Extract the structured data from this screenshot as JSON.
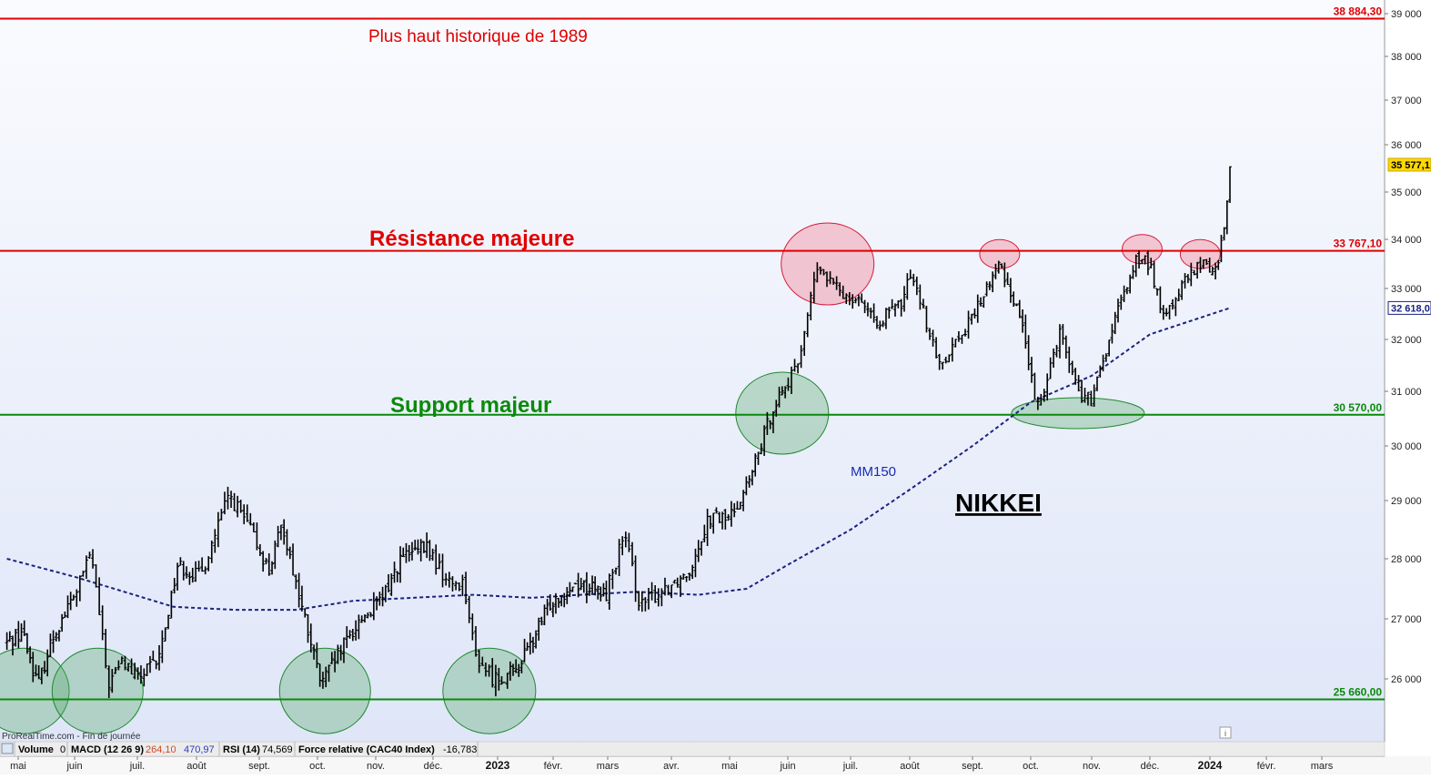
{
  "chart_data": {
    "type": "line",
    "subtype": "ohlc-bars",
    "title": "NIKKEI",
    "ylim": [
      25000,
      39300
    ],
    "y_ticks": [
      {
        "value": 26000,
        "label": "26 000"
      },
      {
        "value": 27000,
        "label": "27 000"
      },
      {
        "value": 28000,
        "label": "28 000"
      },
      {
        "value": 29000,
        "label": "29 000"
      },
      {
        "value": 30000,
        "label": "30 000"
      },
      {
        "value": 31000,
        "label": "31 000"
      },
      {
        "value": 32000,
        "label": "32 000"
      },
      {
        "value": 33000,
        "label": "33 000"
      },
      {
        "value": 34000,
        "label": "34 000"
      },
      {
        "value": 35000,
        "label": "35 000"
      },
      {
        "value": 36000,
        "label": "36 000"
      },
      {
        "value": 37000,
        "label": "37 000"
      },
      {
        "value": 38000,
        "label": "38 000"
      },
      {
        "value": 39000,
        "label": "39 000"
      }
    ],
    "x_ticks": [
      {
        "date": "2022-05-01",
        "label": "mai"
      },
      {
        "date": "2022-06-01",
        "label": "juin"
      },
      {
        "date": "2022-07-01",
        "label": "juil."
      },
      {
        "date": "2022-08-01",
        "label": "août"
      },
      {
        "date": "2022-09-01",
        "label": "sept."
      },
      {
        "date": "2022-10-01",
        "label": "oct."
      },
      {
        "date": "2022-11-01",
        "label": "nov."
      },
      {
        "date": "2022-12-01",
        "label": "déc."
      },
      {
        "date": "2023-01-01",
        "label": "2023",
        "bold": true
      },
      {
        "date": "2023-02-01",
        "label": "févr."
      },
      {
        "date": "2023-03-01",
        "label": "mars"
      },
      {
        "date": "2023-04-01",
        "label": "avr."
      },
      {
        "date": "2023-05-01",
        "label": "mai"
      },
      {
        "date": "2023-06-01",
        "label": "juin"
      },
      {
        "date": "2023-07-01",
        "label": "juil."
      },
      {
        "date": "2023-08-01",
        "label": "août"
      },
      {
        "date": "2023-09-01",
        "label": "sept."
      },
      {
        "date": "2023-10-01",
        "label": "oct."
      },
      {
        "date": "2023-11-01",
        "label": "nov."
      },
      {
        "date": "2023-12-01",
        "label": "déc."
      },
      {
        "date": "2024-01-01",
        "label": "2024",
        "bold": true
      },
      {
        "date": "2024-02-01",
        "label": "févr."
      },
      {
        "date": "2024-03-01",
        "label": "mars"
      }
    ],
    "price_path": [
      {
        "date": "2022-04-25",
        "close": 26600
      },
      {
        "date": "2022-05-03",
        "close": 26800
      },
      {
        "date": "2022-05-12",
        "close": 25900
      },
      {
        "date": "2022-05-20",
        "close": 26700
      },
      {
        "date": "2022-06-01",
        "close": 27400
      },
      {
        "date": "2022-06-09",
        "close": 28100
      },
      {
        "date": "2022-06-17",
        "close": 25900
      },
      {
        "date": "2022-06-24",
        "close": 26300
      },
      {
        "date": "2022-07-01",
        "close": 26000
      },
      {
        "date": "2022-07-12",
        "close": 26300
      },
      {
        "date": "2022-07-22",
        "close": 27900
      },
      {
        "date": "2022-08-03",
        "close": 27700
      },
      {
        "date": "2022-08-17",
        "close": 29100
      },
      {
        "date": "2022-08-26",
        "close": 28600
      },
      {
        "date": "2022-09-06",
        "close": 27800
      },
      {
        "date": "2022-09-13",
        "close": 28600
      },
      {
        "date": "2022-09-22",
        "close": 27300
      },
      {
        "date": "2022-10-03",
        "close": 25900
      },
      {
        "date": "2022-10-12",
        "close": 26400
      },
      {
        "date": "2022-10-24",
        "close": 27000
      },
      {
        "date": "2022-11-04",
        "close": 27300
      },
      {
        "date": "2022-11-14",
        "close": 28000
      },
      {
        "date": "2022-11-28",
        "close": 28200
      },
      {
        "date": "2022-12-08",
        "close": 27600
      },
      {
        "date": "2022-12-16",
        "close": 27600
      },
      {
        "date": "2022-12-21",
        "close": 26400
      },
      {
        "date": "2022-12-30",
        "close": 26000
      },
      {
        "date": "2023-01-10",
        "close": 26100
      },
      {
        "date": "2023-01-20",
        "close": 26600
      },
      {
        "date": "2023-01-31",
        "close": 27300
      },
      {
        "date": "2023-02-13",
        "close": 27600
      },
      {
        "date": "2023-02-28",
        "close": 27400
      },
      {
        "date": "2023-03-09",
        "close": 28400
      },
      {
        "date": "2023-03-17",
        "close": 27200
      },
      {
        "date": "2023-03-28",
        "close": 27500
      },
      {
        "date": "2023-04-10",
        "close": 27800
      },
      {
        "date": "2023-04-20",
        "close": 28700
      },
      {
        "date": "2023-05-01",
        "close": 28700
      },
      {
        "date": "2023-05-12",
        "close": 29400
      },
      {
        "date": "2023-05-25",
        "close": 30800
      },
      {
        "date": "2023-06-05",
        "close": 31400
      },
      {
        "date": "2023-06-15",
        "close": 33400
      },
      {
        "date": "2023-06-27",
        "close": 32900
      },
      {
        "date": "2023-07-07",
        "close": 32800
      },
      {
        "date": "2023-07-13",
        "close": 32300
      },
      {
        "date": "2023-07-28",
        "close": 32700
      },
      {
        "date": "2023-08-02",
        "close": 33400
      },
      {
        "date": "2023-08-15",
        "close": 31500
      },
      {
        "date": "2023-08-30",
        "close": 32300
      },
      {
        "date": "2023-09-15",
        "close": 33500
      },
      {
        "date": "2023-09-27",
        "close": 32300
      },
      {
        "date": "2023-10-04",
        "close": 30600
      },
      {
        "date": "2023-10-16",
        "close": 32200
      },
      {
        "date": "2023-10-25",
        "close": 31000
      },
      {
        "date": "2023-11-01",
        "close": 30800
      },
      {
        "date": "2023-11-14",
        "close": 32500
      },
      {
        "date": "2023-11-24",
        "close": 33600
      },
      {
        "date": "2023-12-01",
        "close": 33500
      },
      {
        "date": "2023-12-08",
        "close": 32400
      },
      {
        "date": "2023-12-20",
        "close": 33200
      },
      {
        "date": "2023-12-28",
        "close": 33500
      },
      {
        "date": "2024-01-05",
        "close": 33400
      },
      {
        "date": "2024-01-10",
        "close": 34600
      },
      {
        "date": "2024-01-12",
        "close": 35577
      }
    ],
    "series": [
      {
        "name": "MM150",
        "points": [
          {
            "date": "2022-04-25",
            "value": 28000
          },
          {
            "date": "2022-06-01",
            "value": 27700
          },
          {
            "date": "2022-06-20",
            "value": 27500
          },
          {
            "date": "2022-07-20",
            "value": 27200
          },
          {
            "date": "2022-08-20",
            "value": 27150
          },
          {
            "date": "2022-09-20",
            "value": 27150
          },
          {
            "date": "2022-10-20",
            "value": 27300
          },
          {
            "date": "2022-11-20",
            "value": 27350
          },
          {
            "date": "2022-12-20",
            "value": 27400
          },
          {
            "date": "2023-01-20",
            "value": 27350
          },
          {
            "date": "2023-02-15",
            "value": 27400
          },
          {
            "date": "2023-03-15",
            "value": 27450
          },
          {
            "date": "2023-04-15",
            "value": 27400
          },
          {
            "date": "2023-05-10",
            "value": 27500
          },
          {
            "date": "2023-06-01",
            "value": 27900
          },
          {
            "date": "2023-07-01",
            "value": 28500
          },
          {
            "date": "2023-08-01",
            "value": 29200
          },
          {
            "date": "2023-09-01",
            "value": 30000
          },
          {
            "date": "2023-10-01",
            "value": 30800
          },
          {
            "date": "2023-11-01",
            "value": 31300
          },
          {
            "date": "2023-12-01",
            "value": 32100
          },
          {
            "date": "2024-01-12",
            "value": 32618
          }
        ]
      }
    ],
    "levels": [
      {
        "value": 38884.3,
        "label": "38 884,30",
        "color": "#e00000"
      },
      {
        "value": 33767.1,
        "label": "33 767,10",
        "color": "#e00000"
      },
      {
        "value": 30570.0,
        "label": "30 570,00",
        "color": "#0a8a0a"
      },
      {
        "value": 25660.0,
        "label": "25 660,00",
        "color": "#0a8a0a"
      }
    ],
    "highlight_circles": [
      {
        "date": "2023-06-20",
        "value": 33500,
        "color": "red"
      },
      {
        "date": "2023-09-15",
        "value": 33700,
        "color": "red"
      },
      {
        "date": "2023-11-27",
        "value": 33800,
        "color": "red"
      },
      {
        "date": "2023-12-27",
        "value": 33700,
        "color": "red"
      },
      {
        "date": "2023-05-29",
        "value": 30600,
        "color": "green"
      },
      {
        "date": "2023-10-25",
        "value": 30600,
        "color": "green"
      },
      {
        "date": "2022-05-04",
        "value": 25800,
        "color": "green"
      },
      {
        "date": "2022-06-12",
        "value": 25800,
        "color": "green"
      },
      {
        "date": "2022-10-05",
        "value": 25800,
        "color": "green"
      },
      {
        "date": "2022-12-28",
        "value": 25800,
        "color": "green"
      }
    ],
    "last_price": {
      "value": 35577,
      "label": "35 577,1"
    },
    "ma_last": {
      "value": 32618,
      "label": "32 618,0"
    },
    "legend": "none",
    "grid": false
  },
  "annotations": {
    "ath": "Plus haut historique de 1989",
    "resistance": "Résistance majeure",
    "support": "Support majeur",
    "ma_name": "MM150",
    "index_name": "NIKKEI",
    "source": "ProRealTime.com - Fin de journée"
  },
  "indicator_bar": {
    "volume_label": "Volume",
    "volume_value": "0",
    "macd_label": "MACD (12 26 9)",
    "macd_value1": "264,10",
    "macd_value2": "470,97",
    "rsi_label": "RSI (14)",
    "rsi_value": "74,569",
    "rs_label": "Force relative (CAC40 Index)",
    "rs_value": "-16,783"
  },
  "colors": {
    "resistance": "#e00000",
    "support": "#0a8a0a",
    "moving_average": "#1a237e",
    "price_bars": "#000000",
    "last_price_badge": "#ffd800"
  }
}
